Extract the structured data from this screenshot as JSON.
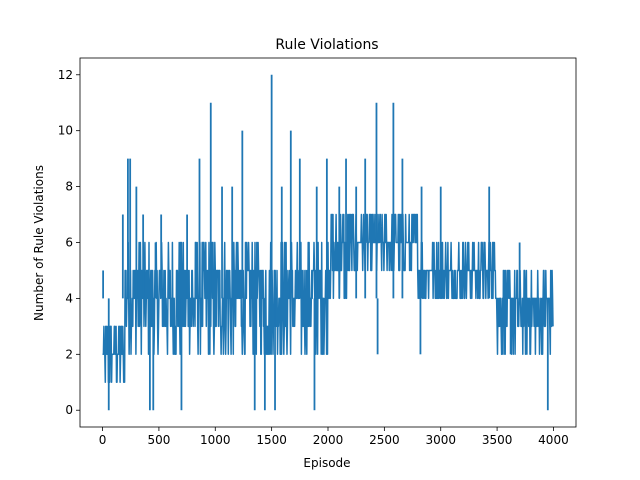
{
  "chart_data": {
    "type": "line",
    "title": "Rule Violations",
    "xlabel": "Episode",
    "ylabel": "Number of Rule Violations",
    "xlim": [
      -200,
      4200
    ],
    "ylim": [
      -0.6,
      12.6
    ],
    "xticks": [
      0,
      500,
      1000,
      1500,
      2000,
      2500,
      3000,
      3500,
      4000
    ],
    "yticks": [
      0,
      2,
      4,
      6,
      8,
      10,
      12
    ],
    "xtick_labels": [
      "0",
      "500",
      "1000",
      "1500",
      "2000",
      "2500",
      "3000",
      "3500",
      "4000"
    ],
    "ytick_labels": [
      "0",
      "2",
      "4",
      "6",
      "8",
      "10",
      "12"
    ],
    "grid": false,
    "legend": "none",
    "series_color": "#1f77b4",
    "band_segments": [
      {
        "x_start": 0,
        "x_end": 200,
        "low": 1,
        "high": 3
      },
      {
        "x_start": 200,
        "x_end": 600,
        "low": 2,
        "high": 6
      },
      {
        "x_start": 600,
        "x_end": 1000,
        "low": 2,
        "high": 6
      },
      {
        "x_start": 1000,
        "x_end": 1500,
        "low": 2,
        "high": 6
      },
      {
        "x_start": 1500,
        "x_end": 2000,
        "low": 2,
        "high": 6
      },
      {
        "x_start": 2000,
        "x_end": 2200,
        "low": 4,
        "high": 7
      },
      {
        "x_start": 2200,
        "x_end": 2800,
        "low": 5,
        "high": 7
      },
      {
        "x_start": 2800,
        "x_end": 3200,
        "low": 4,
        "high": 6
      },
      {
        "x_start": 3200,
        "x_end": 3500,
        "low": 4,
        "high": 6
      },
      {
        "x_start": 3500,
        "x_end": 4000,
        "low": 2,
        "high": 5
      }
    ],
    "spikes": [
      {
        "x": 5,
        "y": 5
      },
      {
        "x": 40,
        "y": 4
      },
      {
        "x": 55,
        "y": 0
      },
      {
        "x": 180,
        "y": 7
      },
      {
        "x": 225,
        "y": 9
      },
      {
        "x": 245,
        "y": 9
      },
      {
        "x": 300,
        "y": 8
      },
      {
        "x": 360,
        "y": 7
      },
      {
        "x": 420,
        "y": 0
      },
      {
        "x": 450,
        "y": 0
      },
      {
        "x": 470,
        "y": 6
      },
      {
        "x": 520,
        "y": 7
      },
      {
        "x": 700,
        "y": 0
      },
      {
        "x": 750,
        "y": 7
      },
      {
        "x": 860,
        "y": 9
      },
      {
        "x": 960,
        "y": 11
      },
      {
        "x": 1060,
        "y": 8
      },
      {
        "x": 1150,
        "y": 8
      },
      {
        "x": 1240,
        "y": 10
      },
      {
        "x": 1350,
        "y": 0
      },
      {
        "x": 1440,
        "y": 0
      },
      {
        "x": 1500,
        "y": 12
      },
      {
        "x": 1530,
        "y": 0
      },
      {
        "x": 1590,
        "y": 8
      },
      {
        "x": 1670,
        "y": 10
      },
      {
        "x": 1750,
        "y": 9
      },
      {
        "x": 1880,
        "y": 0
      },
      {
        "x": 1900,
        "y": 8
      },
      {
        "x": 1990,
        "y": 9
      },
      {
        "x": 2100,
        "y": 8
      },
      {
        "x": 2160,
        "y": 9
      },
      {
        "x": 2250,
        "y": 8
      },
      {
        "x": 2330,
        "y": 9
      },
      {
        "x": 2430,
        "y": 11
      },
      {
        "x": 2440,
        "y": 2
      },
      {
        "x": 2580,
        "y": 11
      },
      {
        "x": 2660,
        "y": 9
      },
      {
        "x": 2820,
        "y": 2
      },
      {
        "x": 2830,
        "y": 8
      },
      {
        "x": 3000,
        "y": 8
      },
      {
        "x": 3430,
        "y": 8
      },
      {
        "x": 3620,
        "y": 2
      },
      {
        "x": 3700,
        "y": 6
      },
      {
        "x": 3950,
        "y": 0
      },
      {
        "x": 3980,
        "y": 5
      }
    ]
  }
}
